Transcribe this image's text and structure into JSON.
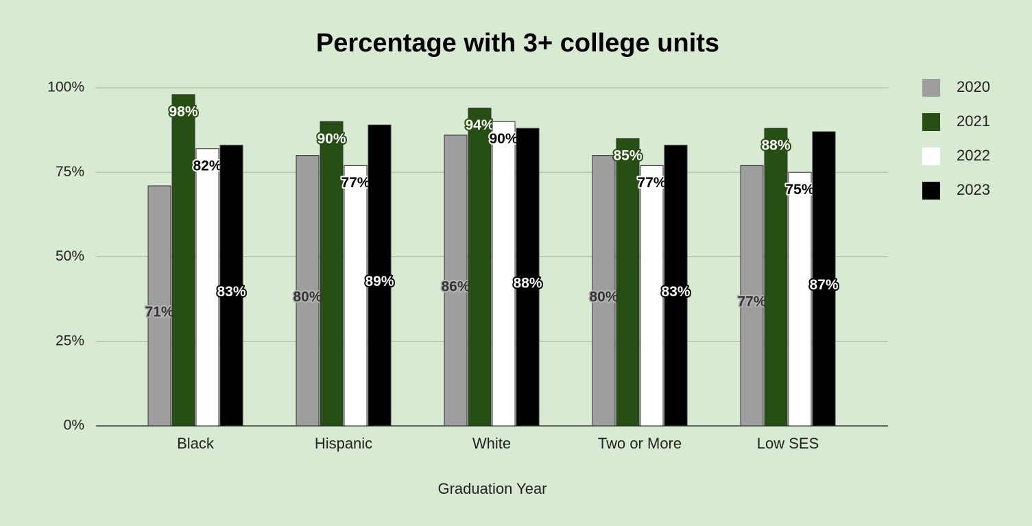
{
  "chart_data": {
    "type": "bar",
    "title": "Percentage with 3+ college units",
    "x_label": "Graduation Year",
    "categories": [
      "Black",
      "Hispanic",
      "White",
      "Two or More",
      "Low SES"
    ],
    "series": [
      {
        "name": "2020",
        "color": "#9e9e9e",
        "values": [
          71,
          80,
          86,
          80,
          77
        ],
        "value_labels": [
          "71%",
          "80%",
          "86%",
          "80%",
          "77%"
        ]
      },
      {
        "name": "2021",
        "color": "#274e13",
        "values": [
          98,
          90,
          94,
          85,
          88
        ],
        "value_labels": [
          "98%",
          "90%",
          "94%",
          "85%",
          "88%"
        ]
      },
      {
        "name": "2022",
        "color": "#ffffff",
        "values": [
          82,
          77,
          90,
          77,
          75
        ],
        "value_labels": [
          "82%",
          "77%",
          "90%",
          "77%",
          "75%"
        ]
      },
      {
        "name": "2023",
        "color": "#000000",
        "values": [
          83,
          89,
          88,
          83,
          87
        ],
        "value_labels": [
          "83%",
          "89%",
          "88%",
          "83%",
          "87%"
        ]
      }
    ],
    "ylim": [
      0,
      100
    ],
    "yticks": [
      {
        "value": 0,
        "label": "0%"
      },
      {
        "value": 25,
        "label": "25%"
      },
      {
        "value": 50,
        "label": "50%"
      },
      {
        "value": 75,
        "label": "75%"
      },
      {
        "value": 100,
        "label": "100%"
      }
    ],
    "grid": true,
    "legend": "right"
  }
}
